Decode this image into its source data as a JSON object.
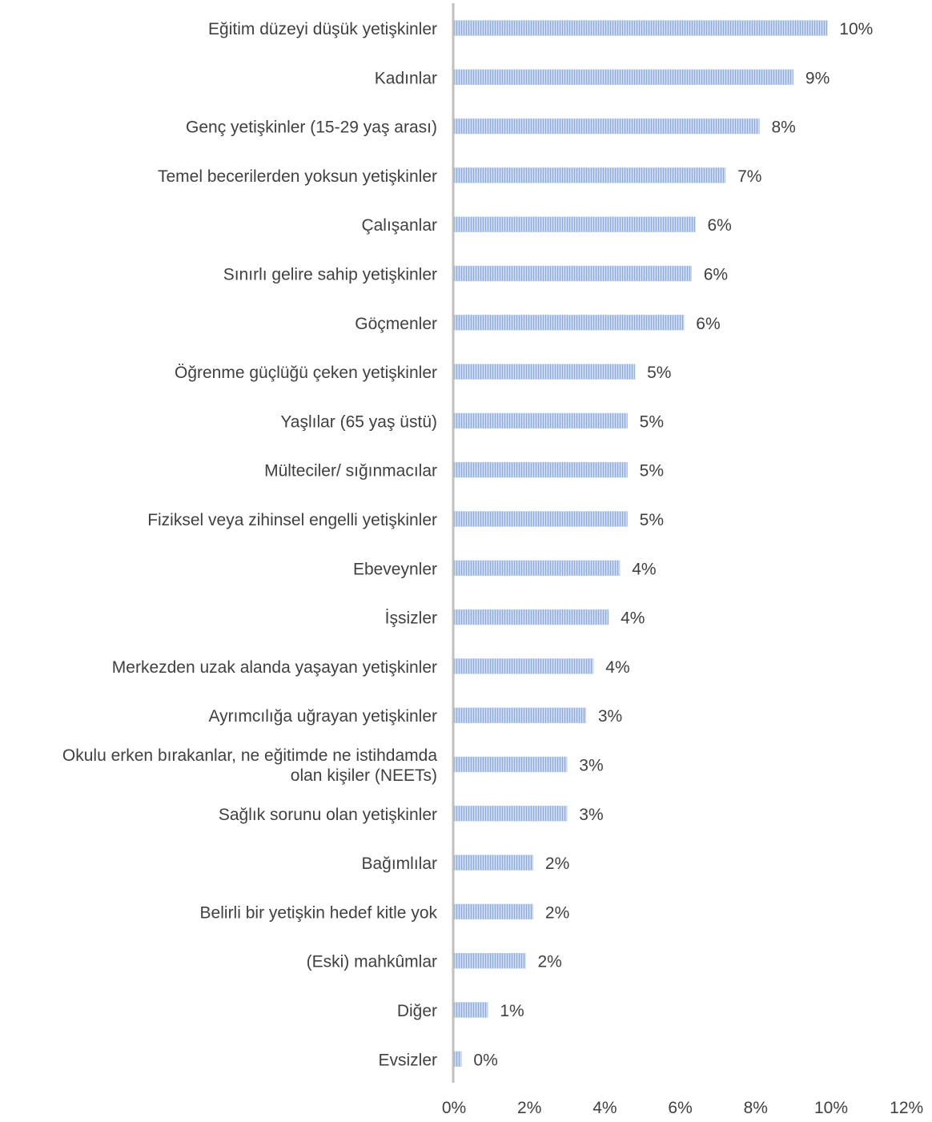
{
  "chart_data": {
    "type": "bar",
    "orientation": "horizontal",
    "categories": [
      "Eğitim düzeyi düşük yetişkinler",
      "Kadınlar",
      "Genç yetişkinler (15-29 yaş arası)",
      "Temel becerilerden yoksun yetişkinler",
      "Çalışanlar",
      "Sınırlı gelire sahip yetişkinler",
      "Göçmenler",
      "Öğrenme güçlüğü çeken yetişkinler",
      "Yaşlılar (65 yaş üstü)",
      "Mülteciler/ sığınmacılar",
      "Fiziksel veya zihinsel engelli yetişkinler",
      "Ebeveynler",
      "İşsizler",
      "Merkezden uzak alanda yaşayan yetişkinler",
      "Ayrımcılığa uğrayan yetişkinler",
      "Okulu erken bırakanlar, ne eğitimde ne istihdamda olan kişiler (NEETs)",
      "Sağlık sorunu olan yetişkinler",
      "Bağımlılar",
      "Belirli bir yetişkin hedef kitle yok",
      "(Eski) mahkûmlar",
      "Diğer",
      "Evsizler"
    ],
    "category_lines": [
      [
        "Eğitim düzeyi düşük yetişkinler"
      ],
      [
        "Kadınlar"
      ],
      [
        "Genç yetişkinler (15-29 yaş arası)"
      ],
      [
        "Temel becerilerden yoksun yetişkinler"
      ],
      [
        "Çalışanlar"
      ],
      [
        "Sınırlı gelire sahip yetişkinler"
      ],
      [
        "Göçmenler"
      ],
      [
        "Öğrenme güçlüğü çeken yetişkinler"
      ],
      [
        "Yaşlılar (65 yaş üstü)"
      ],
      [
        "Mülteciler/ sığınmacılar"
      ],
      [
        "Fiziksel veya zihinsel engelli yetişkinler"
      ],
      [
        "Ebeveynler"
      ],
      [
        "İşsizler"
      ],
      [
        "Merkezden uzak alanda yaşayan yetişkinler"
      ],
      [
        "Ayrımcılığa uğrayan yetişkinler"
      ],
      [
        "Okulu erken bırakanlar, ne eğitimde ne istihdamda",
        "olan kişiler (NEETs)"
      ],
      [
        "Sağlık sorunu olan yetişkinler"
      ],
      [
        "Bağımlılar"
      ],
      [
        "Belirli bir yetişkin hedef kitle yok"
      ],
      [
        "(Eski) mahkûmlar"
      ],
      [
        "Diğer"
      ],
      [
        "Evsizler"
      ]
    ],
    "values": [
      9.9,
      9.0,
      8.1,
      7.2,
      6.4,
      6.3,
      6.1,
      4.8,
      4.6,
      4.6,
      4.6,
      4.4,
      4.1,
      3.7,
      3.5,
      3.0,
      3.0,
      2.1,
      2.1,
      1.9,
      0.9,
      0.2
    ],
    "data_labels": [
      "10%",
      "9%",
      "8%",
      "7%",
      "6%",
      "6%",
      "6%",
      "5%",
      "5%",
      "5%",
      "5%",
      "4%",
      "4%",
      "4%",
      "3%",
      "3%",
      "3%",
      "2%",
      "2%",
      "2%",
      "1%",
      "0%"
    ],
    "xlim": [
      0,
      12
    ],
    "xticks": [
      0,
      2,
      4,
      6,
      8,
      10,
      12
    ],
    "xtick_labels": [
      "0%",
      "2%",
      "4%",
      "6%",
      "8%",
      "10%",
      "12%"
    ],
    "title": "",
    "xlabel": "",
    "ylabel": "",
    "grid": false,
    "legend": "none",
    "bar_color": "#c5d6ee",
    "bar_pattern_color": "#8eaadb",
    "axis_color": "#bfbfbf",
    "text_color": "#404040"
  }
}
